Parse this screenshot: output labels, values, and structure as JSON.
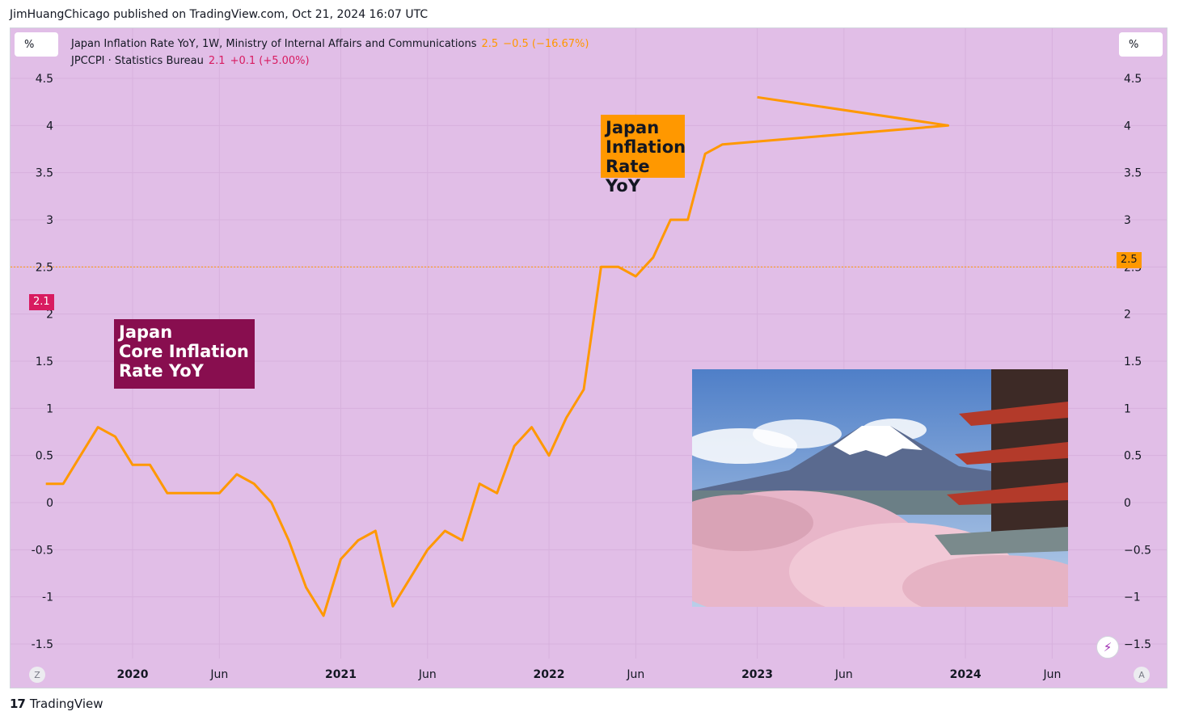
{
  "header": {
    "text": "JimHuangChicago published on TradingView.com, Oct 21, 2024 16:07 UTC"
  },
  "footer": {
    "logo": "17",
    "brand": "TradingView"
  },
  "colors": {
    "background": "#e1bee7",
    "orange": "#ff9800",
    "pink": "#d81b60",
    "annotation_core_bg": "#880e4f",
    "annotation_infl_bg": "#ff9800"
  },
  "units": {
    "left": "%",
    "right": "%"
  },
  "legend": {
    "series1": {
      "title": "Japan Inflation Rate YoY, 1W, Ministry of Internal Affairs and Communications",
      "value": "2.5",
      "change": "−0.5 (−16.67%)"
    },
    "series2": {
      "title": "JPCCPI · Statistics Bureau",
      "value": "2.1",
      "change": "+0.1 (+5.00%)"
    }
  },
  "badges": {
    "left": "2.1",
    "right": "2.5"
  },
  "annotations": {
    "core": [
      "Japan",
      "Core Inflation",
      "Rate YoY"
    ],
    "inflation": [
      "Japan",
      "Inflation",
      "Rate YoY"
    ]
  },
  "scale_buttons": {
    "left": "Z",
    "right": "A"
  },
  "photo_icon": "mount-fuji-pagoda-photo",
  "chart_data": {
    "type": "line",
    "ylim": [
      -1.6,
      4.6
    ],
    "yticks": [
      4.5,
      4,
      3.5,
      3,
      2.5,
      2,
      1.5,
      1,
      0.5,
      0,
      -0.5,
      -1,
      -1.5
    ],
    "left_tick_labels": [
      "4.5",
      "4",
      "3.5",
      "3",
      "2.5",
      "2",
      "1.5",
      "1",
      "0.5",
      "0",
      "-0.5",
      "-1",
      "-1.5"
    ],
    "right_tick_labels": [
      "4.5",
      "4",
      "3.5",
      "3",
      "2.5",
      "2",
      "1.5",
      "1",
      "0.5",
      "0",
      "−0.5",
      "−1",
      "−1.5"
    ],
    "xlim": [
      "2019-08",
      "2024-10"
    ],
    "xticks": [
      {
        "date": "2020-01",
        "label": "2020",
        "bold": true
      },
      {
        "date": "2020-06",
        "label": "Jun",
        "bold": false
      },
      {
        "date": "2021-01",
        "label": "2021",
        "bold": true
      },
      {
        "date": "2021-06",
        "label": "Jun",
        "bold": false
      },
      {
        "date": "2022-01",
        "label": "2022",
        "bold": true
      },
      {
        "date": "2022-06",
        "label": "Jun",
        "bold": false
      },
      {
        "date": "2023-01",
        "label": "2023",
        "bold": true
      },
      {
        "date": "2023-06",
        "label": "Jun",
        "bold": false
      },
      {
        "date": "2024-01",
        "label": "2024",
        "bold": true
      },
      {
        "date": "2024-06",
        "label": "Jun",
        "bold": false
      }
    ],
    "reference_line": 2.5,
    "series": [
      {
        "name": "Japan Inflation Rate YoY",
        "color": "#ff9800",
        "points": [
          [
            "2019-08",
            0.2
          ],
          [
            "2019-09",
            0.2
          ],
          [
            "2019-10",
            0.5
          ],
          [
            "2019-11",
            0.8
          ],
          [
            "2019-12",
            0.7
          ],
          [
            "2020-01",
            0.4
          ],
          [
            "2020-02",
            0.4
          ],
          [
            "2020-03",
            0.1
          ],
          [
            "2020-04",
            0.1
          ],
          [
            "2020-05",
            0.1
          ],
          [
            "2020-06",
            0.1
          ],
          [
            "2020-07",
            0.3
          ],
          [
            "2020-08",
            0.2
          ],
          [
            "2020-09",
            0.0
          ],
          [
            "2020-10",
            -0.4
          ],
          [
            "2020-11",
            -0.9
          ],
          [
            "2020-12",
            -1.2
          ],
          [
            "2021-01",
            -0.6
          ],
          [
            "2021-02",
            -0.4
          ],
          [
            "2021-03",
            -0.3
          ],
          [
            "2021-04",
            -1.1
          ],
          [
            "2021-05",
            -0.8
          ],
          [
            "2021-06",
            -0.5
          ],
          [
            "2021-07",
            -0.3
          ],
          [
            "2021-08",
            -0.4
          ],
          [
            "2021-09",
            0.2
          ],
          [
            "2021-10",
            0.1
          ],
          [
            "2021-11",
            0.6
          ],
          [
            "2021-12",
            0.8
          ],
          [
            "2022-01",
            0.5
          ],
          [
            "2022-02",
            0.9
          ],
          [
            "2022-03",
            1.2
          ],
          [
            "2022-04",
            2.5
          ],
          [
            "2022-05",
            2.5
          ],
          [
            "2022-06",
            2.4
          ],
          [
            "2022-07",
            2.6
          ],
          [
            "2022-08",
            3.0
          ],
          [
            "2022-09",
            3.0
          ],
          [
            "2022-10",
            3.7
          ],
          [
            "2022-11",
            3.8
          ],
          [
            "2023-12-01",
            4.0
          ],
          [
            "2023-01",
            4.3
          ]
        ]
      }
    ]
  }
}
